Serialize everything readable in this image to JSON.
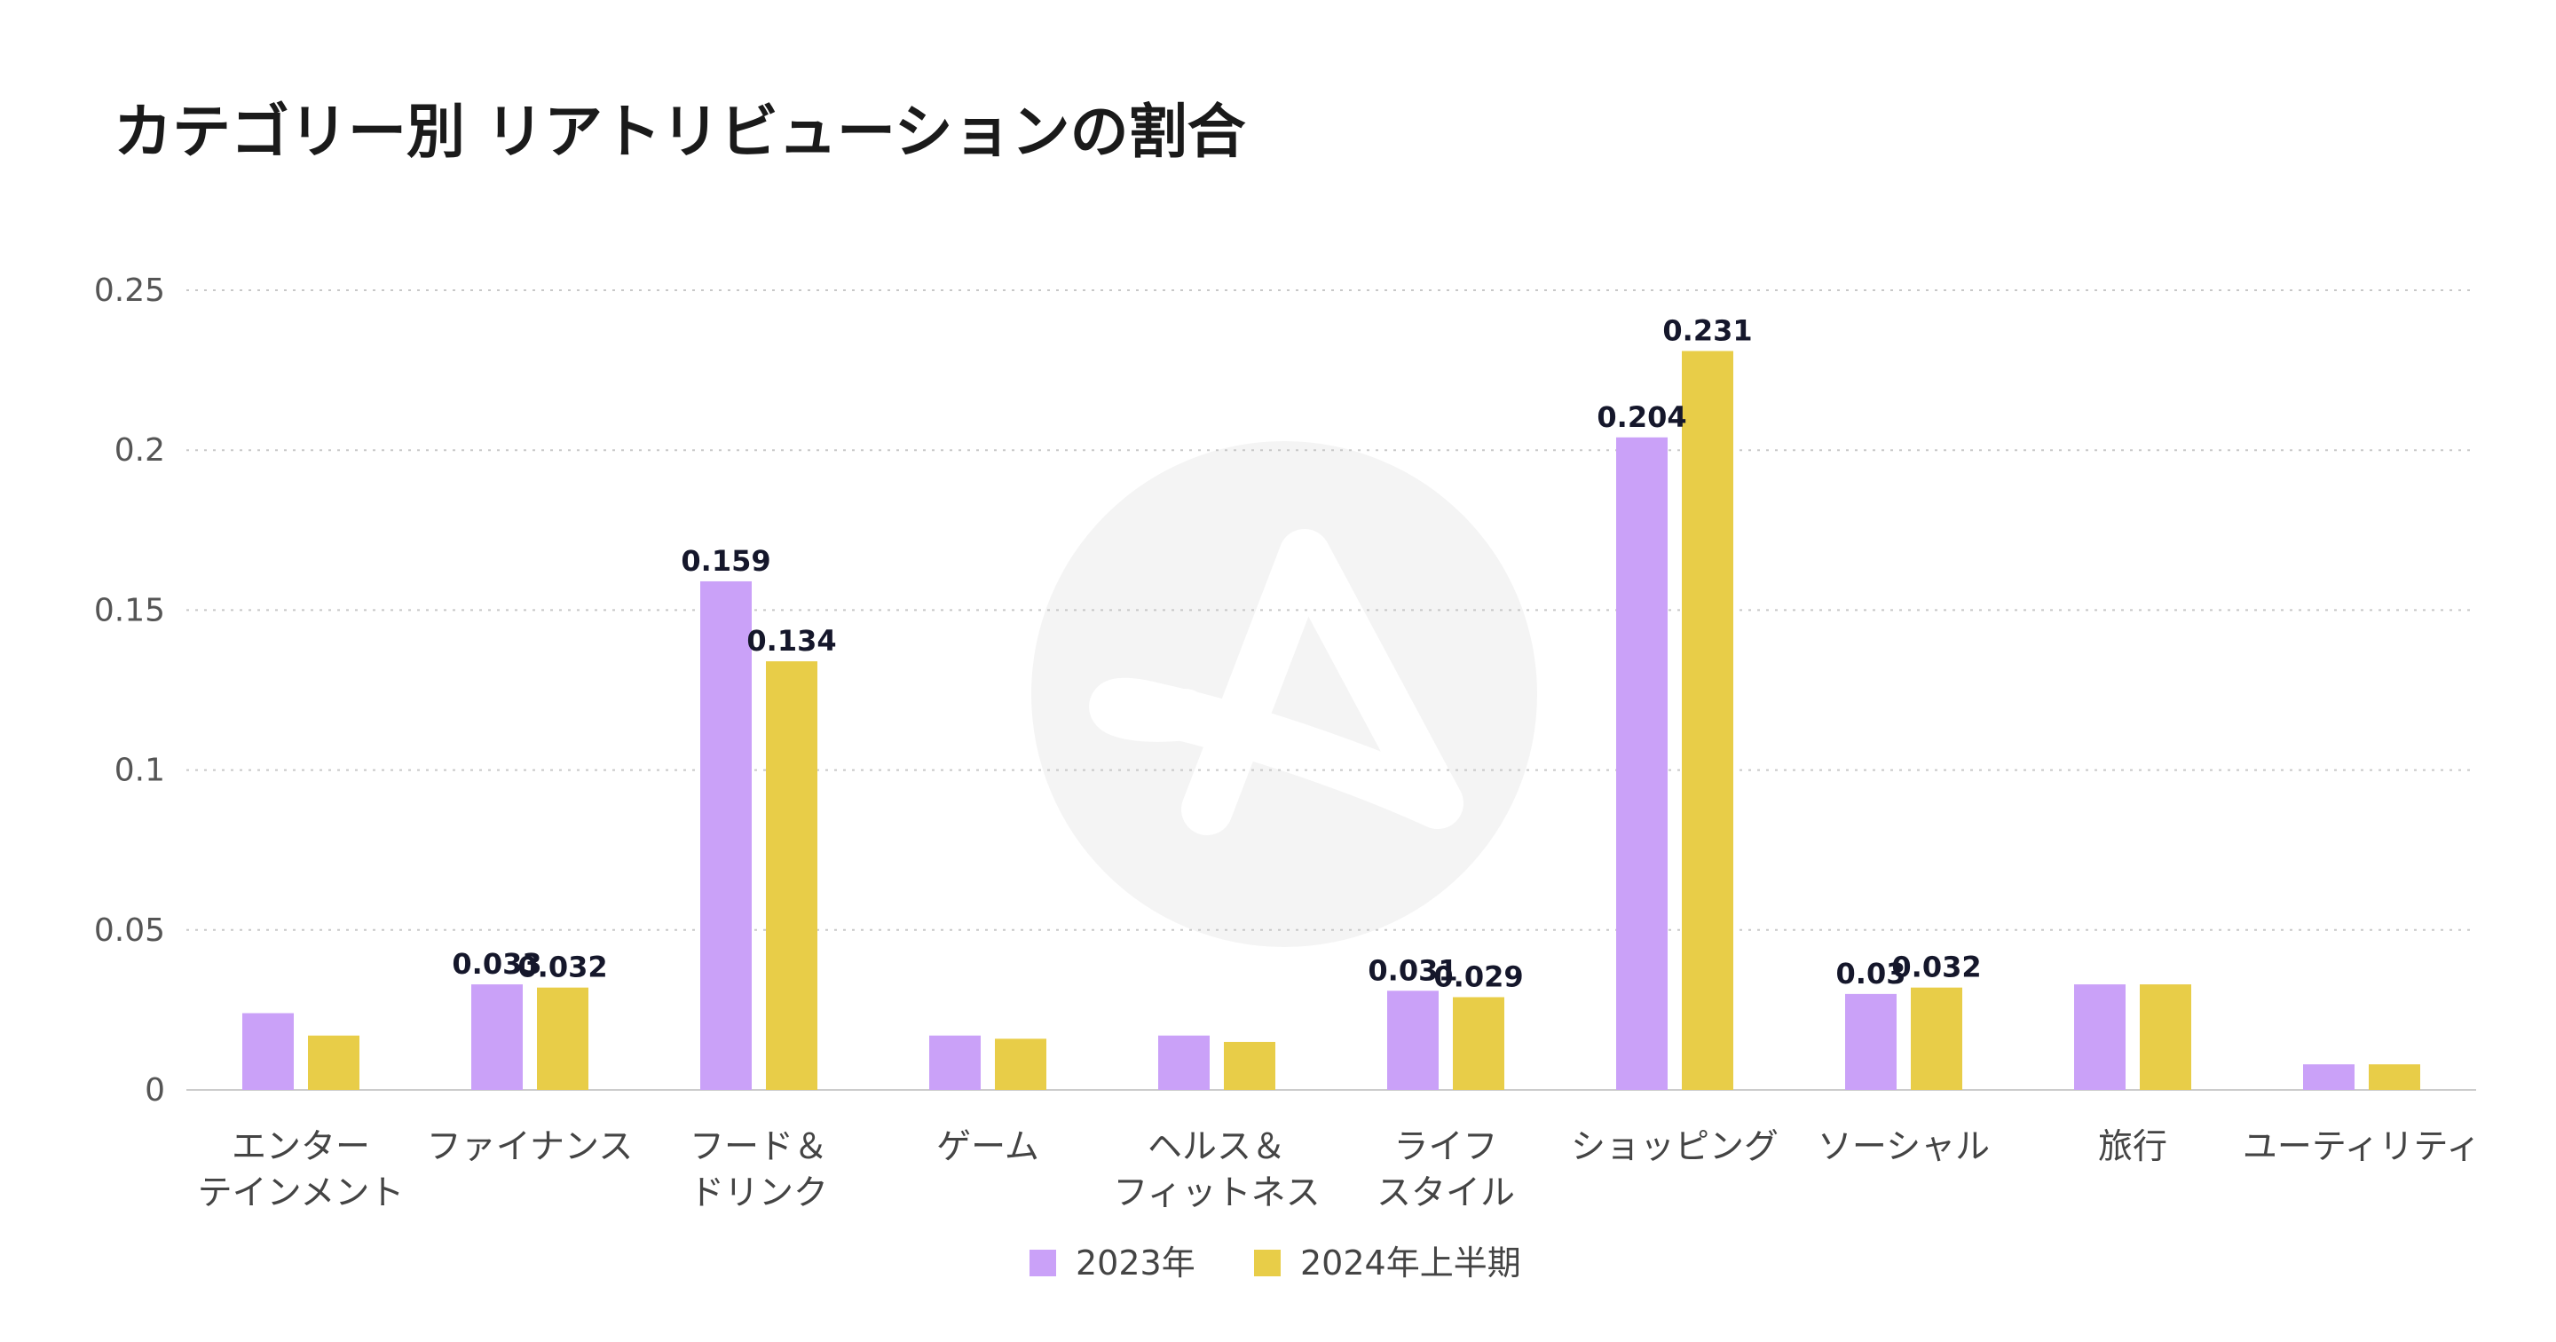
{
  "chart_title": "カテゴリー別 リアトリビューションの割合",
  "chart_data": {
    "type": "bar",
    "title": "カテゴリー別 リアトリビューションの割合",
    "categories": [
      [
        "エンター",
        "テインメント"
      ],
      [
        "ファイナンス"
      ],
      [
        "フード＆",
        "ドリンク"
      ],
      [
        "ゲーム"
      ],
      [
        "ヘルス＆",
        "フィットネス"
      ],
      [
        "ライフ",
        "スタイル"
      ],
      [
        "ショッピング"
      ],
      [
        "ソーシャル"
      ],
      [
        "旅行"
      ],
      [
        "ユーティリティ"
      ]
    ],
    "series": [
      {
        "name": "2023年",
        "color": "#caa1f8",
        "values": [
          0.024,
          0.033,
          0.159,
          0.017,
          0.017,
          0.031,
          0.204,
          0.03,
          0.033,
          0.008
        ],
        "labels": [
          "",
          "0.033",
          "0.159",
          "",
          "",
          "0.031",
          "0.204",
          "0.03",
          "",
          ""
        ]
      },
      {
        "name": "2024年上半期",
        "color": "#e8cd48",
        "values": [
          0.017,
          0.032,
          0.134,
          0.016,
          0.015,
          0.029,
          0.231,
          0.032,
          0.033,
          0.008
        ],
        "labels": [
          "",
          "0.032",
          "0.134",
          "",
          "",
          "0.029",
          "0.231",
          "0.032",
          "",
          ""
        ]
      }
    ],
    "yticks": [
      0,
      0.05,
      0.1,
      0.15,
      0.2,
      0.25
    ],
    "ytick_labels": [
      "0",
      "0.05",
      "0.1",
      "0.15",
      "0.2",
      "0.25"
    ],
    "ylim": [
      0,
      0.25
    ],
    "grid": true,
    "legend_position": "bottom-center"
  }
}
